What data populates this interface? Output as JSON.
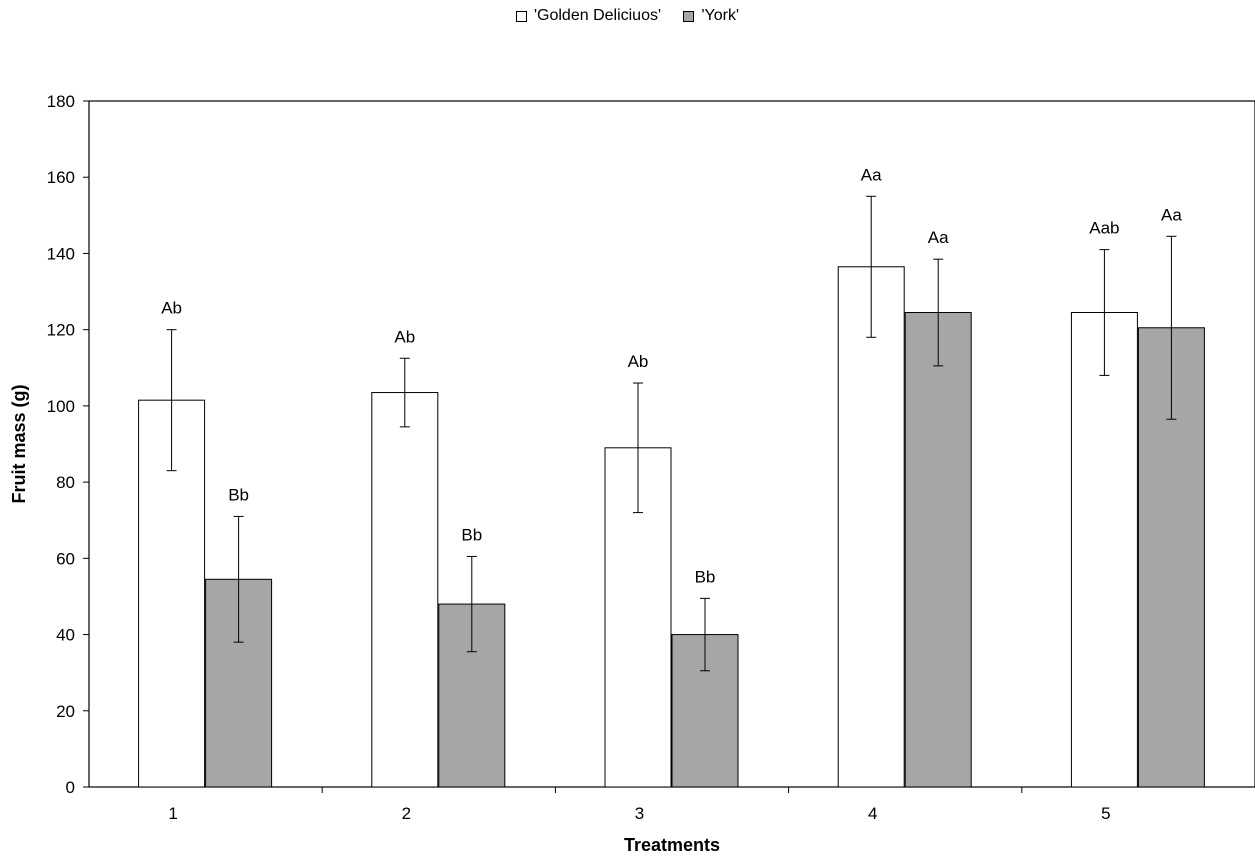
{
  "chart_data": {
    "type": "bar",
    "title": "",
    "xlabel": "Treatments",
    "ylabel": "Fruit mass (g)",
    "ylim": [
      0,
      180
    ],
    "yticks": [
      0,
      20,
      40,
      60,
      80,
      100,
      120,
      140,
      160,
      180
    ],
    "categories": [
      "1",
      "2",
      "3",
      "4",
      "5"
    ],
    "grid": false,
    "legend_position": "top-center",
    "series": [
      {
        "name": "'Golden Deliciuos'",
        "color": "#ffffff",
        "values": [
          101.5,
          103.5,
          89,
          136.5,
          124.5
        ],
        "errors": [
          18.5,
          9,
          17,
          18.5,
          16.5
        ],
        "labels": [
          "Ab",
          "Ab",
          "Ab",
          "Aa",
          "Aab"
        ]
      },
      {
        "name": "'York'",
        "color": "#a6a6a6",
        "values": [
          54.5,
          48,
          40,
          124.5,
          120.5
        ],
        "errors": [
          16.5,
          12.5,
          9.5,
          14,
          24
        ],
        "labels": [
          "Bb",
          "Bb",
          "Bb",
          "Aa",
          "Aa"
        ]
      }
    ]
  }
}
